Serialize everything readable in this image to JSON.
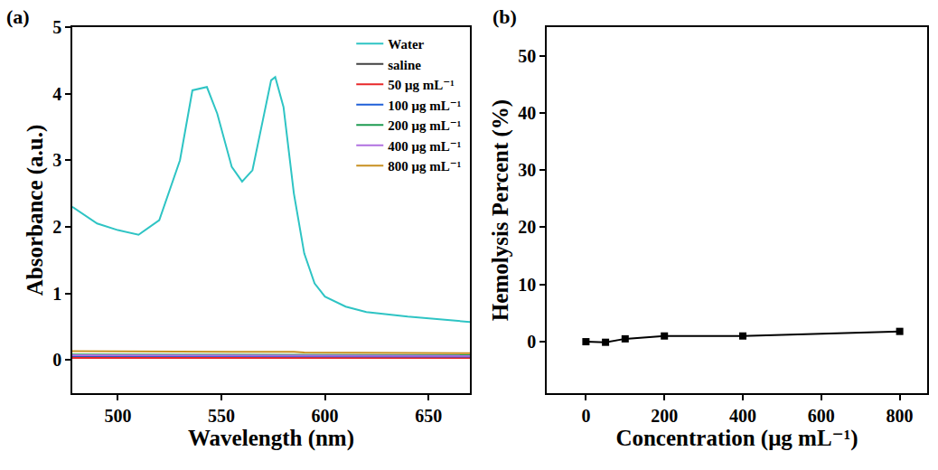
{
  "chart_data": [
    {
      "type": "line",
      "title": "(a)",
      "x_label": "Wavelength (nm)",
      "y_label": "Absorbance (a.u.)",
      "x": [
        478,
        490,
        500,
        510,
        520,
        530,
        536,
        540,
        543,
        548,
        555,
        560,
        565,
        570,
        574,
        576,
        580,
        585,
        590,
        595,
        600,
        610,
        620,
        640,
        660,
        670
      ],
      "series": [
        {
          "name": "Water",
          "color": "#2ec4c4",
          "values": [
            2.3,
            2.05,
            1.95,
            1.88,
            2.1,
            3.0,
            4.05,
            4.08,
            4.1,
            3.7,
            2.9,
            2.68,
            2.85,
            3.6,
            4.2,
            4.25,
            3.8,
            2.5,
            1.6,
            1.15,
            0.95,
            0.8,
            0.72,
            0.65,
            0.6,
            0.57
          ]
        },
        {
          "name": "saline",
          "color": "#404040",
          "values": [
            0.05,
            0.05,
            0.05,
            0.05,
            0.05,
            0.05,
            0.05,
            0.05,
            0.05,
            0.05,
            0.05,
            0.05,
            0.05,
            0.05,
            0.05,
            0.05,
            0.05,
            0.05,
            0.05,
            0.05,
            0.05,
            0.05,
            0.05,
            0.05,
            0.05,
            0.05
          ]
        },
        {
          "name": "50 μg mL⁻¹",
          "color": "#e8282a",
          "values": [
            0.03,
            0.03,
            0.03,
            0.03,
            0.03,
            0.03,
            0.03,
            0.03,
            0.03,
            0.03,
            0.03,
            0.03,
            0.03,
            0.03,
            0.03,
            0.03,
            0.03,
            0.03,
            0.03,
            0.03,
            0.03,
            0.03,
            0.03,
            0.03,
            0.03,
            0.03
          ]
        },
        {
          "name": "100 μg mL⁻¹",
          "color": "#1f5fd8",
          "values": [
            0.06,
            0.06,
            0.06,
            0.06,
            0.06,
            0.06,
            0.06,
            0.06,
            0.06,
            0.06,
            0.06,
            0.06,
            0.06,
            0.06,
            0.06,
            0.06,
            0.06,
            0.06,
            0.06,
            0.05,
            0.05,
            0.05,
            0.05,
            0.05,
            0.05,
            0.05
          ]
        },
        {
          "name": "200 μg mL⁻¹",
          "color": "#1e9b50",
          "values": [
            0.08,
            0.08,
            0.08,
            0.08,
            0.08,
            0.08,
            0.08,
            0.08,
            0.08,
            0.08,
            0.08,
            0.08,
            0.08,
            0.08,
            0.08,
            0.08,
            0.08,
            0.08,
            0.07,
            0.07,
            0.07,
            0.07,
            0.07,
            0.07,
            0.07,
            0.07
          ]
        },
        {
          "name": "400 μg mL⁻¹",
          "color": "#b070e0",
          "values": [
            0.07,
            0.07,
            0.07,
            0.07,
            0.07,
            0.07,
            0.07,
            0.07,
            0.07,
            0.07,
            0.07,
            0.07,
            0.07,
            0.07,
            0.07,
            0.07,
            0.07,
            0.07,
            0.07,
            0.06,
            0.06,
            0.06,
            0.06,
            0.06,
            0.06,
            0.06
          ]
        },
        {
          "name": "800 μg mL⁻¹",
          "color": "#c89020",
          "values": [
            0.13,
            0.13,
            0.13,
            0.13,
            0.13,
            0.13,
            0.13,
            0.12,
            0.12,
            0.12,
            0.12,
            0.12,
            0.12,
            0.12,
            0.12,
            0.12,
            0.12,
            0.12,
            0.11,
            0.11,
            0.11,
            0.11,
            0.11,
            0.1,
            0.1,
            0.1
          ]
        }
      ],
      "xlim": [
        478,
        670
      ],
      "xticks": [
        500,
        550,
        600,
        650
      ],
      "ylim": [
        -0.5,
        5
      ],
      "yticks": [
        0,
        1,
        2,
        3,
        4,
        5
      ],
      "legend": "upper right"
    },
    {
      "type": "line",
      "title": "(b)",
      "x_label": "Concentration (μg mL⁻¹)",
      "y_label": "Hemolysis Percent (%)",
      "x": [
        0,
        50,
        100,
        200,
        400,
        800
      ],
      "values": [
        0,
        -0.1,
        0.5,
        1.0,
        1.0,
        1.8
      ],
      "color": "#000000",
      "marker": "square",
      "xlim": [
        -100,
        870
      ],
      "xticks": [
        0,
        200,
        400,
        600,
        800
      ],
      "ylim": [
        -9,
        55
      ],
      "yticks": [
        0,
        10,
        20,
        30,
        40,
        50
      ]
    }
  ]
}
